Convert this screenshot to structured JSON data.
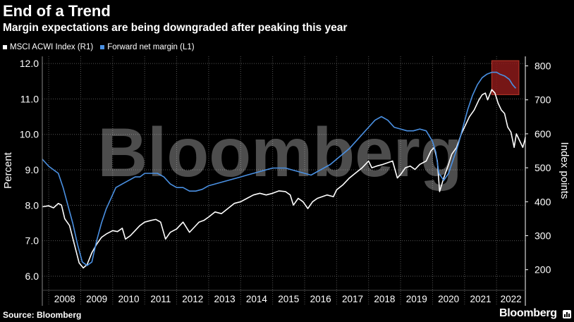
{
  "header": {
    "title": "End of a Trend",
    "subtitle": "Margin expectations are being downgraded after peaking this year"
  },
  "footer": {
    "source": "Source: Bloomberg",
    "brand": "Bloomberg"
  },
  "watermark": "Bloomberg",
  "colors": {
    "background": "#000000",
    "msci": "#ffffff",
    "margin": "#4a90e2",
    "grid": "#555555",
    "highlight": "#8b1a1a"
  },
  "chart_data": {
    "type": "line",
    "ylabel_left": "Percent",
    "ylabel_right": "Index points",
    "y_left_ticks": [
      "6.0",
      "7.0",
      "8.0",
      "9.0",
      "10.0",
      "11.0",
      "12.0"
    ],
    "y_left_range": [
      5.8,
      12.2
    ],
    "y_right_ticks": [
      "200",
      "300",
      "400",
      "500",
      "600",
      "700",
      "800"
    ],
    "y_right_range": [
      160,
      828
    ],
    "x_range": [
      2007.8,
      2022.9
    ],
    "x_ticks": [
      "2008",
      "2009",
      "2010",
      "2011",
      "2012",
      "2013",
      "2014",
      "2015",
      "2016",
      "2017",
      "2018",
      "2019",
      "2020",
      "2021",
      "2022"
    ],
    "grid": true,
    "legend_position": "top-left",
    "highlight": {
      "x_start": 2021.85,
      "x_end": 2022.7,
      "label": ""
    },
    "series": [
      {
        "name": "MSCI ACWI Index (R1)",
        "axis": "right",
        "points": [
          [
            2007.8,
            385
          ],
          [
            2008.0,
            388
          ],
          [
            2008.15,
            382
          ],
          [
            2008.3,
            395
          ],
          [
            2008.4,
            390
          ],
          [
            2008.5,
            350
          ],
          [
            2008.65,
            330
          ],
          [
            2008.8,
            275
          ],
          [
            2008.95,
            220
          ],
          [
            2009.08,
            205
          ],
          [
            2009.2,
            215
          ],
          [
            2009.35,
            250
          ],
          [
            2009.5,
            275
          ],
          [
            2009.65,
            295
          ],
          [
            2009.8,
            305
          ],
          [
            2010.0,
            315
          ],
          [
            2010.15,
            312
          ],
          [
            2010.3,
            322
          ],
          [
            2010.4,
            290
          ],
          [
            2010.55,
            300
          ],
          [
            2010.7,
            315
          ],
          [
            2010.85,
            330
          ],
          [
            2011.0,
            340
          ],
          [
            2011.2,
            345
          ],
          [
            2011.35,
            348
          ],
          [
            2011.5,
            340
          ],
          [
            2011.65,
            290
          ],
          [
            2011.8,
            310
          ],
          [
            2012.0,
            320
          ],
          [
            2012.2,
            340
          ],
          [
            2012.4,
            310
          ],
          [
            2012.55,
            325
          ],
          [
            2012.7,
            340
          ],
          [
            2012.85,
            345
          ],
          [
            2013.0,
            355
          ],
          [
            2013.2,
            370
          ],
          [
            2013.4,
            365
          ],
          [
            2013.6,
            380
          ],
          [
            2013.8,
            395
          ],
          [
            2014.0,
            400
          ],
          [
            2014.2,
            410
          ],
          [
            2014.4,
            420
          ],
          [
            2014.6,
            425
          ],
          [
            2014.8,
            420
          ],
          [
            2015.0,
            425
          ],
          [
            2015.2,
            432
          ],
          [
            2015.4,
            430
          ],
          [
            2015.55,
            420
          ],
          [
            2015.65,
            390
          ],
          [
            2015.8,
            410
          ],
          [
            2015.95,
            400
          ],
          [
            2016.1,
            380
          ],
          [
            2016.25,
            400
          ],
          [
            2016.4,
            410
          ],
          [
            2016.55,
            415
          ],
          [
            2016.7,
            420
          ],
          [
            2016.9,
            415
          ],
          [
            2017.0,
            435
          ],
          [
            2017.2,
            450
          ],
          [
            2017.4,
            470
          ],
          [
            2017.6,
            485
          ],
          [
            2017.8,
            500
          ],
          [
            2018.0,
            520
          ],
          [
            2018.1,
            500
          ],
          [
            2018.25,
            505
          ],
          [
            2018.45,
            510
          ],
          [
            2018.6,
            515
          ],
          [
            2018.75,
            520
          ],
          [
            2018.9,
            470
          ],
          [
            2019.0,
            480
          ],
          [
            2019.15,
            500
          ],
          [
            2019.3,
            505
          ],
          [
            2019.45,
            495
          ],
          [
            2019.6,
            510
          ],
          [
            2019.8,
            520
          ],
          [
            2019.95,
            550
          ],
          [
            2020.05,
            560
          ],
          [
            2020.15,
            520
          ],
          [
            2020.22,
            430
          ],
          [
            2020.35,
            470
          ],
          [
            2020.5,
            510
          ],
          [
            2020.6,
            540
          ],
          [
            2020.75,
            560
          ],
          [
            2020.9,
            600
          ],
          [
            2021.0,
            620
          ],
          [
            2021.15,
            650
          ],
          [
            2021.3,
            670
          ],
          [
            2021.45,
            700
          ],
          [
            2021.55,
            715
          ],
          [
            2021.65,
            720
          ],
          [
            2021.72,
            700
          ],
          [
            2021.85,
            730
          ],
          [
            2021.95,
            720
          ],
          [
            2022.05,
            690
          ],
          [
            2022.15,
            670
          ],
          [
            2022.25,
            660
          ],
          [
            2022.35,
            620
          ],
          [
            2022.45,
            605
          ],
          [
            2022.55,
            560
          ],
          [
            2022.62,
            600
          ],
          [
            2022.72,
            580
          ],
          [
            2022.82,
            560
          ],
          [
            2022.88,
            580
          ],
          [
            2022.9,
            590
          ]
        ]
      },
      {
        "name": "Forward net margin (L1)",
        "axis": "left",
        "points": [
          [
            2007.8,
            9.3
          ],
          [
            2008.0,
            9.1
          ],
          [
            2008.15,
            9.0
          ],
          [
            2008.3,
            8.9
          ],
          [
            2008.45,
            8.5
          ],
          [
            2008.6,
            8.0
          ],
          [
            2008.75,
            7.5
          ],
          [
            2008.9,
            6.9
          ],
          [
            2009.05,
            6.4
          ],
          [
            2009.2,
            6.3
          ],
          [
            2009.35,
            6.4
          ],
          [
            2009.5,
            7.0
          ],
          [
            2009.65,
            7.5
          ],
          [
            2009.8,
            7.9
          ],
          [
            2009.95,
            8.2
          ],
          [
            2010.1,
            8.5
          ],
          [
            2010.3,
            8.6
          ],
          [
            2010.5,
            8.7
          ],
          [
            2010.7,
            8.8
          ],
          [
            2010.85,
            8.8
          ],
          [
            2011.0,
            8.9
          ],
          [
            2011.2,
            8.9
          ],
          [
            2011.4,
            8.9
          ],
          [
            2011.6,
            8.8
          ],
          [
            2011.8,
            8.6
          ],
          [
            2012.0,
            8.5
          ],
          [
            2012.2,
            8.5
          ],
          [
            2012.4,
            8.4
          ],
          [
            2012.6,
            8.4
          ],
          [
            2012.8,
            8.45
          ],
          [
            2013.0,
            8.55
          ],
          [
            2013.2,
            8.6
          ],
          [
            2013.4,
            8.65
          ],
          [
            2013.6,
            8.7
          ],
          [
            2013.8,
            8.75
          ],
          [
            2014.0,
            8.8
          ],
          [
            2014.2,
            8.85
          ],
          [
            2014.4,
            8.9
          ],
          [
            2014.6,
            8.95
          ],
          [
            2014.8,
            9.0
          ],
          [
            2015.0,
            9.05
          ],
          [
            2015.2,
            9.05
          ],
          [
            2015.4,
            9.05
          ],
          [
            2015.6,
            9.0
          ],
          [
            2015.8,
            8.95
          ],
          [
            2016.0,
            8.9
          ],
          [
            2016.2,
            8.85
          ],
          [
            2016.4,
            8.95
          ],
          [
            2016.6,
            9.05
          ],
          [
            2016.8,
            9.15
          ],
          [
            2017.0,
            9.3
          ],
          [
            2017.2,
            9.45
          ],
          [
            2017.4,
            9.6
          ],
          [
            2017.6,
            9.8
          ],
          [
            2017.8,
            10.0
          ],
          [
            2018.0,
            10.2
          ],
          [
            2018.2,
            10.4
          ],
          [
            2018.4,
            10.5
          ],
          [
            2018.6,
            10.4
          ],
          [
            2018.8,
            10.2
          ],
          [
            2019.0,
            10.15
          ],
          [
            2019.2,
            10.1
          ],
          [
            2019.4,
            10.1
          ],
          [
            2019.6,
            10.15
          ],
          [
            2019.8,
            10.1
          ],
          [
            2020.0,
            9.8
          ],
          [
            2020.1,
            9.5
          ],
          [
            2020.2,
            8.9
          ],
          [
            2020.35,
            8.7
          ],
          [
            2020.5,
            8.9
          ],
          [
            2020.65,
            9.3
          ],
          [
            2020.8,
            9.7
          ],
          [
            2020.95,
            10.2
          ],
          [
            2021.1,
            10.7
          ],
          [
            2021.25,
            11.1
          ],
          [
            2021.4,
            11.4
          ],
          [
            2021.55,
            11.6
          ],
          [
            2021.7,
            11.7
          ],
          [
            2021.85,
            11.75
          ],
          [
            2022.0,
            11.75
          ],
          [
            2022.1,
            11.7
          ],
          [
            2022.25,
            11.65
          ],
          [
            2022.4,
            11.55
          ],
          [
            2022.5,
            11.4
          ],
          [
            2022.6,
            11.3
          ]
        ]
      }
    ]
  }
}
